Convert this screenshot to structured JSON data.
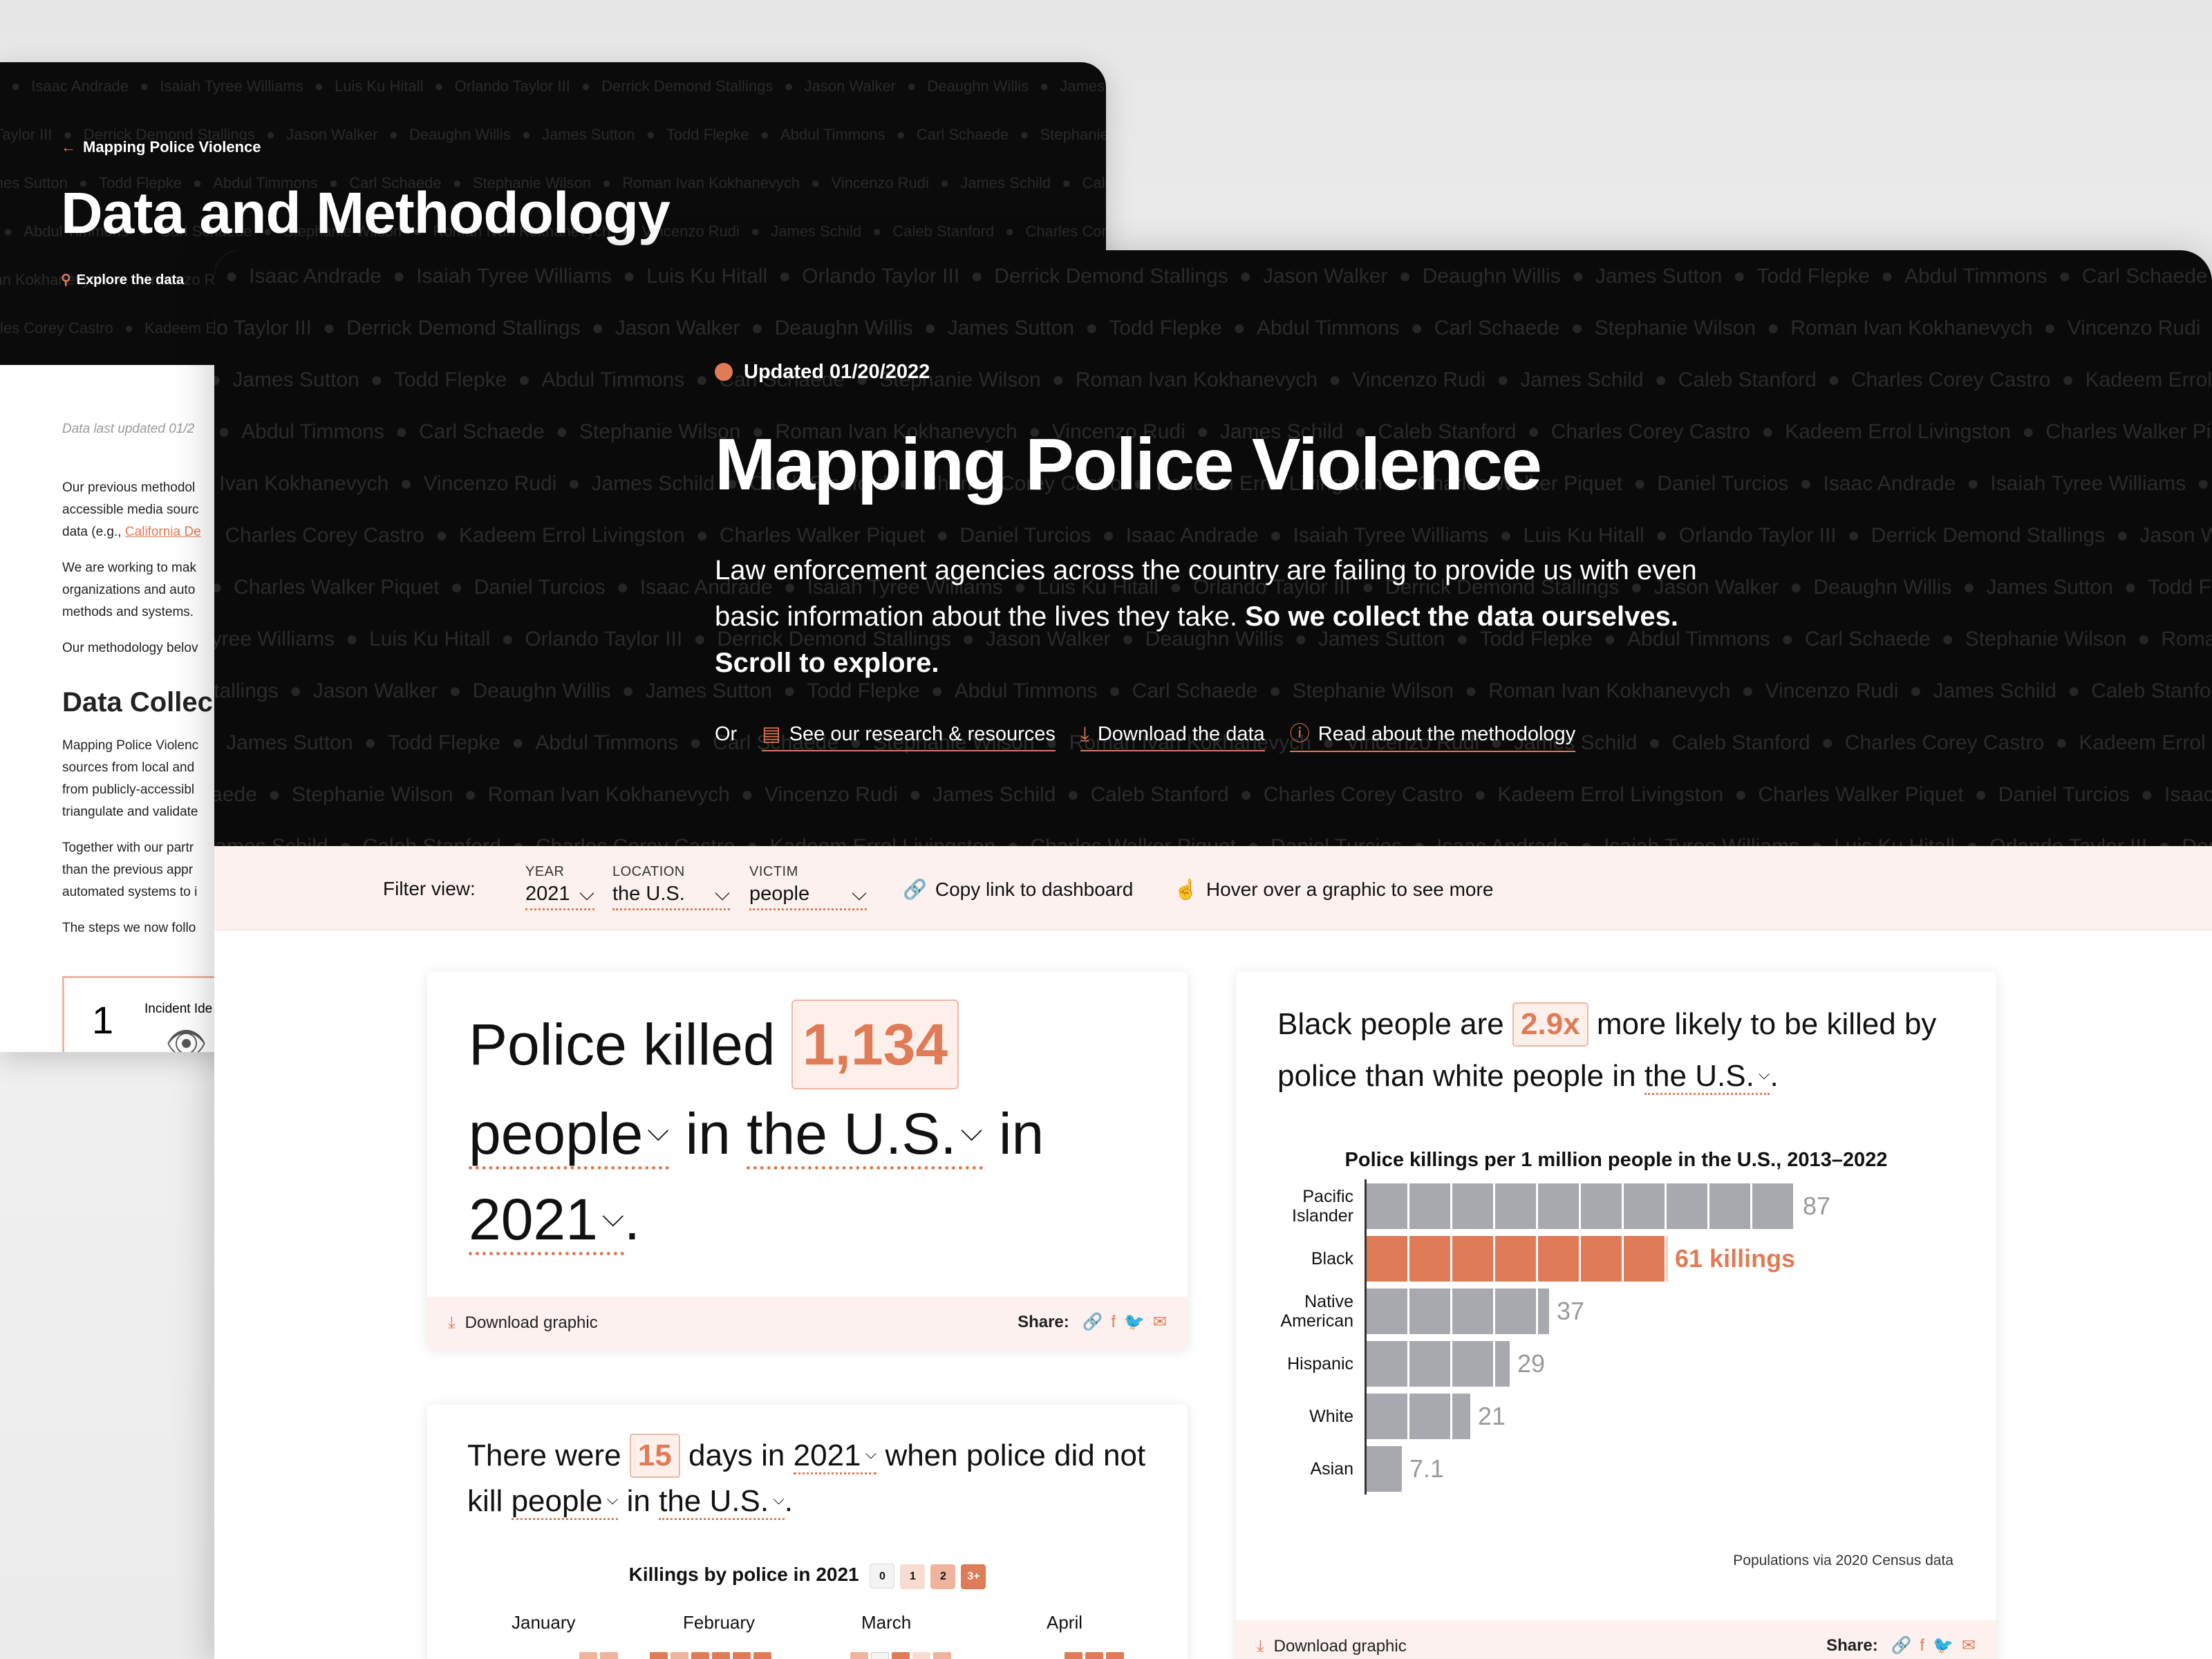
{
  "back": {
    "crumb": "Mapping Police Violence",
    "title": "Data and Methodology",
    "explore": "Explore the data",
    "updated": "Data last updated 01/2",
    "para1_lines": [
      "Our previous methodol",
      "accessible media sourc",
      "data (e.g., "
    ],
    "para1_link": "California De",
    "para2_lines": [
      "We are working to mak",
      "organizations and auto",
      "methods and systems."
    ],
    "para3": "Our methodology belov",
    "heading": "Data Collec",
    "para4_lines": [
      "Mapping Police Violenc",
      "sources from local and",
      "from publicly-accessibl",
      "triangulate and validate"
    ],
    "para5_lines": [
      "Together with our partr",
      "than the previous appr",
      "automated systems to i"
    ],
    "para6": "The steps we now follo",
    "step_num": "1",
    "step_label": "Incident Ide"
  },
  "names": [
    "Isaac Andrade",
    "Isaiah Tyree Williams",
    "Luis Ku Hitall",
    "Orlando Taylor III",
    "Derrick Demond Stallings",
    "Jason Walker",
    "Deaughn Willis",
    "James Sutton",
    "Todd Flepke",
    "Abdul Timmons",
    "Carl Schaede",
    "Stephanie Wilson",
    "Roman Ivan Kokhanevych",
    "Vincenzo Rudi",
    "James Schild",
    "Caleb Stanford",
    "Charles Corey Castro",
    "Kadeem Errol Livingston",
    "Charles Walker Piquet",
    "Daniel Turcios"
  ],
  "hero": {
    "updated": "Updated 01/20/2022",
    "title": "Mapping Police Violence",
    "desc": "Law enforcement agencies across the country are failing to provide us with even basic information about the lives they take.",
    "desc_bold": "So we collect the data ourselves. Scroll to explore.",
    "or": "Or",
    "link_research": "See our research & resources",
    "link_download": "Download the data",
    "link_method": "Read about the methodology"
  },
  "filters": {
    "label": "Filter view:",
    "year_key": "YEAR",
    "year_val": "2021",
    "loc_key": "LOCATION",
    "loc_val": "the U.S.",
    "victim_key": "VICTIM",
    "victim_val": "people",
    "copy": "Copy link to dashboard",
    "hover": "Hover over a graphic to see more"
  },
  "card1": {
    "pre": "Police killed",
    "count": "1,134",
    "people": "people",
    "in": "in",
    "place": "the U.S.",
    "in2": "in",
    "year": "2021",
    "period": "."
  },
  "card2": {
    "pre": "There were",
    "count": "15",
    "mid": "days in",
    "year": "2021",
    "post": "when police did not kill",
    "people": "people",
    "in": "in",
    "place": "the U.S.",
    "period": ".",
    "cal_title": "Killings by police in 2021",
    "legend": [
      "0",
      "1",
      "2",
      "3+"
    ],
    "months": [
      "January",
      "February",
      "March",
      "April"
    ]
  },
  "card3": {
    "pre": "Black people are",
    "ratio": "2.9x",
    "post": "more likely to be killed by police than white people in",
    "place": "the U.S.",
    "period": ".",
    "source": "Populations via 2020 Census data"
  },
  "footer": {
    "download": "Download graphic",
    "share": "Share:"
  },
  "chart_data": {
    "type": "bar",
    "orientation": "horizontal",
    "title": "Police killings per 1 million people in the U.S., 2013–2022",
    "categories": [
      "Pacific Islander",
      "Black",
      "Native American",
      "Hispanic",
      "White",
      "Asian"
    ],
    "values": [
      87,
      61,
      37,
      29,
      21,
      7.1
    ],
    "value_labels": [
      "87",
      "61 killings",
      "37",
      "29",
      "21",
      "7.1"
    ],
    "highlight": "Black",
    "colors": {
      "default": "#a7a9ae",
      "highlight": "#e07b57"
    },
    "xlim": [
      0,
      100
    ],
    "grid": false
  },
  "colors": {
    "accent": "#e07b57",
    "dark": "#0a0a0a",
    "tint": "#fcf1ee"
  }
}
